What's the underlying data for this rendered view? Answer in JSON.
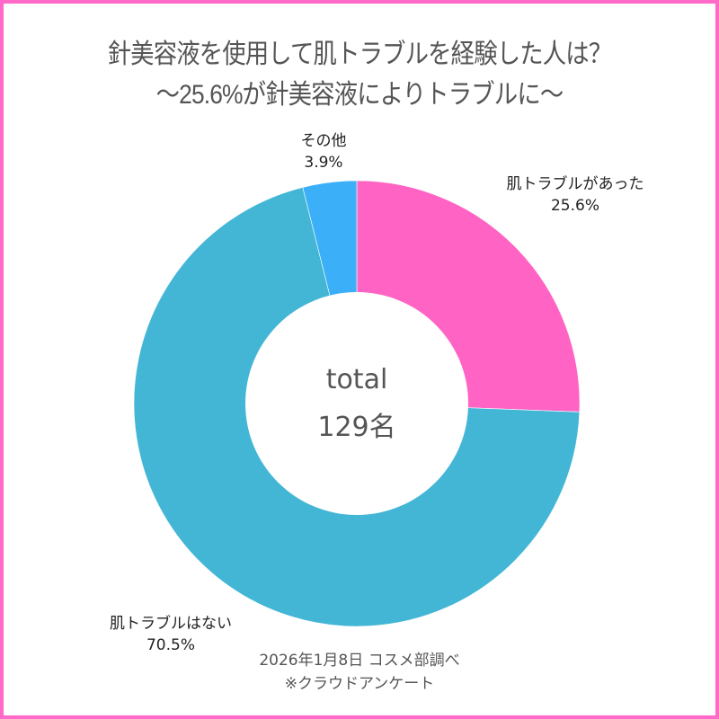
{
  "title": {
    "line1": "針美容液を使用して肌トラブルを経験した人は？",
    "line2": "〜25.6%が針美容液によりトラブルに〜"
  },
  "center": {
    "label": "total",
    "value": "129名"
  },
  "labels": {
    "trouble": {
      "name": "肌トラブルがあった",
      "pct": "25.6%"
    },
    "none": {
      "name": "肌トラブルはない",
      "pct": "70.5%"
    },
    "other": {
      "name": "その他",
      "pct": "3.9%"
    }
  },
  "source": {
    "line1": "2026年1月8日 コスメ部調べ",
    "line2": "※クラウドアンケート"
  },
  "colors": {
    "border": "#ff69c8",
    "trouble": "#ff64c4",
    "none": "#43b6d6",
    "other": "#3bb0f8"
  },
  "chart_data": {
    "type": "pie",
    "subtype": "donut",
    "title": "針美容液を使用して肌トラブルを経験した人は？ 〜25.6%が針美容液によりトラブルに〜",
    "categories": [
      "肌トラブルがあった",
      "肌トラブルはない",
      "その他"
    ],
    "values": [
      25.6,
      70.5,
      3.9
    ],
    "colors": [
      "#ff64c4",
      "#43b6d6",
      "#3bb0f8"
    ],
    "center_text": "total 129名",
    "total_respondents": 129,
    "start_angle": "12 o'clock, clockwise",
    "legend": "none (direct labels)",
    "note": "2026年1月8日 コスメ部調べ ※クラウドアンケート"
  }
}
